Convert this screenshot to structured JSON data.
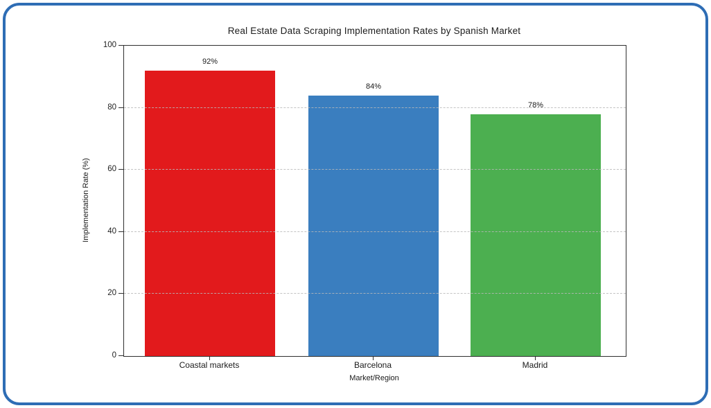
{
  "frame": {
    "border_color": "#2E6DB5",
    "background_color": "#ffffff"
  },
  "chart_data": {
    "type": "bar",
    "title": "Real Estate Data Scraping Implementation Rates by Spanish Market",
    "xlabel": "Market/Region",
    "ylabel": "Implementation Rate (%)",
    "categories": [
      "Coastal markets",
      "Barcelona",
      "Madrid"
    ],
    "values": [
      92,
      84,
      78
    ],
    "value_labels": [
      "92%",
      "84%",
      "78%"
    ],
    "bar_colors": [
      "#E21A1C",
      "#3A7EBF",
      "#4CAF50"
    ],
    "ylim": [
      0,
      100
    ],
    "yticks": [
      "0",
      "20",
      "40",
      "60",
      "80",
      "100"
    ],
    "grid": "horizontal dashed at 20/40/60/80, drawn above bars",
    "legend": "none"
  }
}
